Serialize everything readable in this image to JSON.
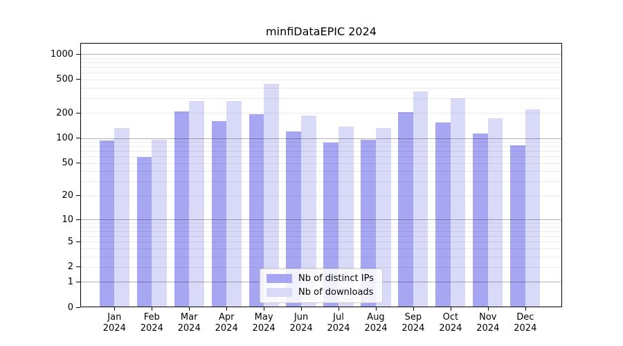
{
  "figure": {
    "title": "minfiDataEPIC 2024"
  },
  "colors": {
    "ips_bar": "#a6a6f2",
    "downloads_bar": "#d9d9f8",
    "grid_major": "rgba(0,0,0,0.30)",
    "grid_minor": "rgba(0,0,0,0.08)",
    "axis_line": "#000000",
    "legend_border": "#cccccc"
  },
  "y_axis": {
    "tick_values": [
      0,
      1,
      2,
      5,
      10,
      20,
      50,
      100,
      200,
      500,
      1000
    ],
    "tick_labels": [
      "0",
      "1",
      "2",
      "5",
      "10",
      "20",
      "50",
      "100",
      "200",
      "500",
      "1000"
    ]
  },
  "x_axis": {
    "months": [
      "Jan",
      "Feb",
      "Mar",
      "Apr",
      "May",
      "Jun",
      "Jul",
      "Aug",
      "Sep",
      "Oct",
      "Nov",
      "Dec"
    ],
    "year": "2024"
  },
  "legend": {
    "items": [
      {
        "label": "Nb of distinct IPs",
        "color_key": "ips_bar"
      },
      {
        "label": "Nb of downloads",
        "color_key": "downloads_bar"
      }
    ]
  },
  "chart_data": {
    "type": "bar",
    "title": "minfiDataEPIC 2024",
    "categories": [
      "Jan 2024",
      "Feb 2024",
      "Mar 2024",
      "Apr 2024",
      "May 2024",
      "Jun 2024",
      "Jul 2024",
      "Aug 2024",
      "Sep 2024",
      "Oct 2024",
      "Nov 2024",
      "Dec 2024"
    ],
    "series": [
      {
        "name": "Nb of distinct IPs",
        "values": [
          94,
          59,
          210,
          159,
          194,
          120,
          89,
          96,
          206,
          153,
          114,
          82
        ]
      },
      {
        "name": "Nb of downloads",
        "values": [
          133,
          96,
          280,
          276,
          448,
          187,
          137,
          132,
          360,
          298,
          174,
          222
        ]
      }
    ],
    "xlabel": "",
    "ylabel": "",
    "yscale": "log1p",
    "ylim": [
      0,
      1360
    ],
    "y_ticks": [
      0,
      1,
      2,
      5,
      10,
      20,
      50,
      100,
      200,
      500,
      1000
    ],
    "grid": true,
    "legend_position": "lower center"
  }
}
